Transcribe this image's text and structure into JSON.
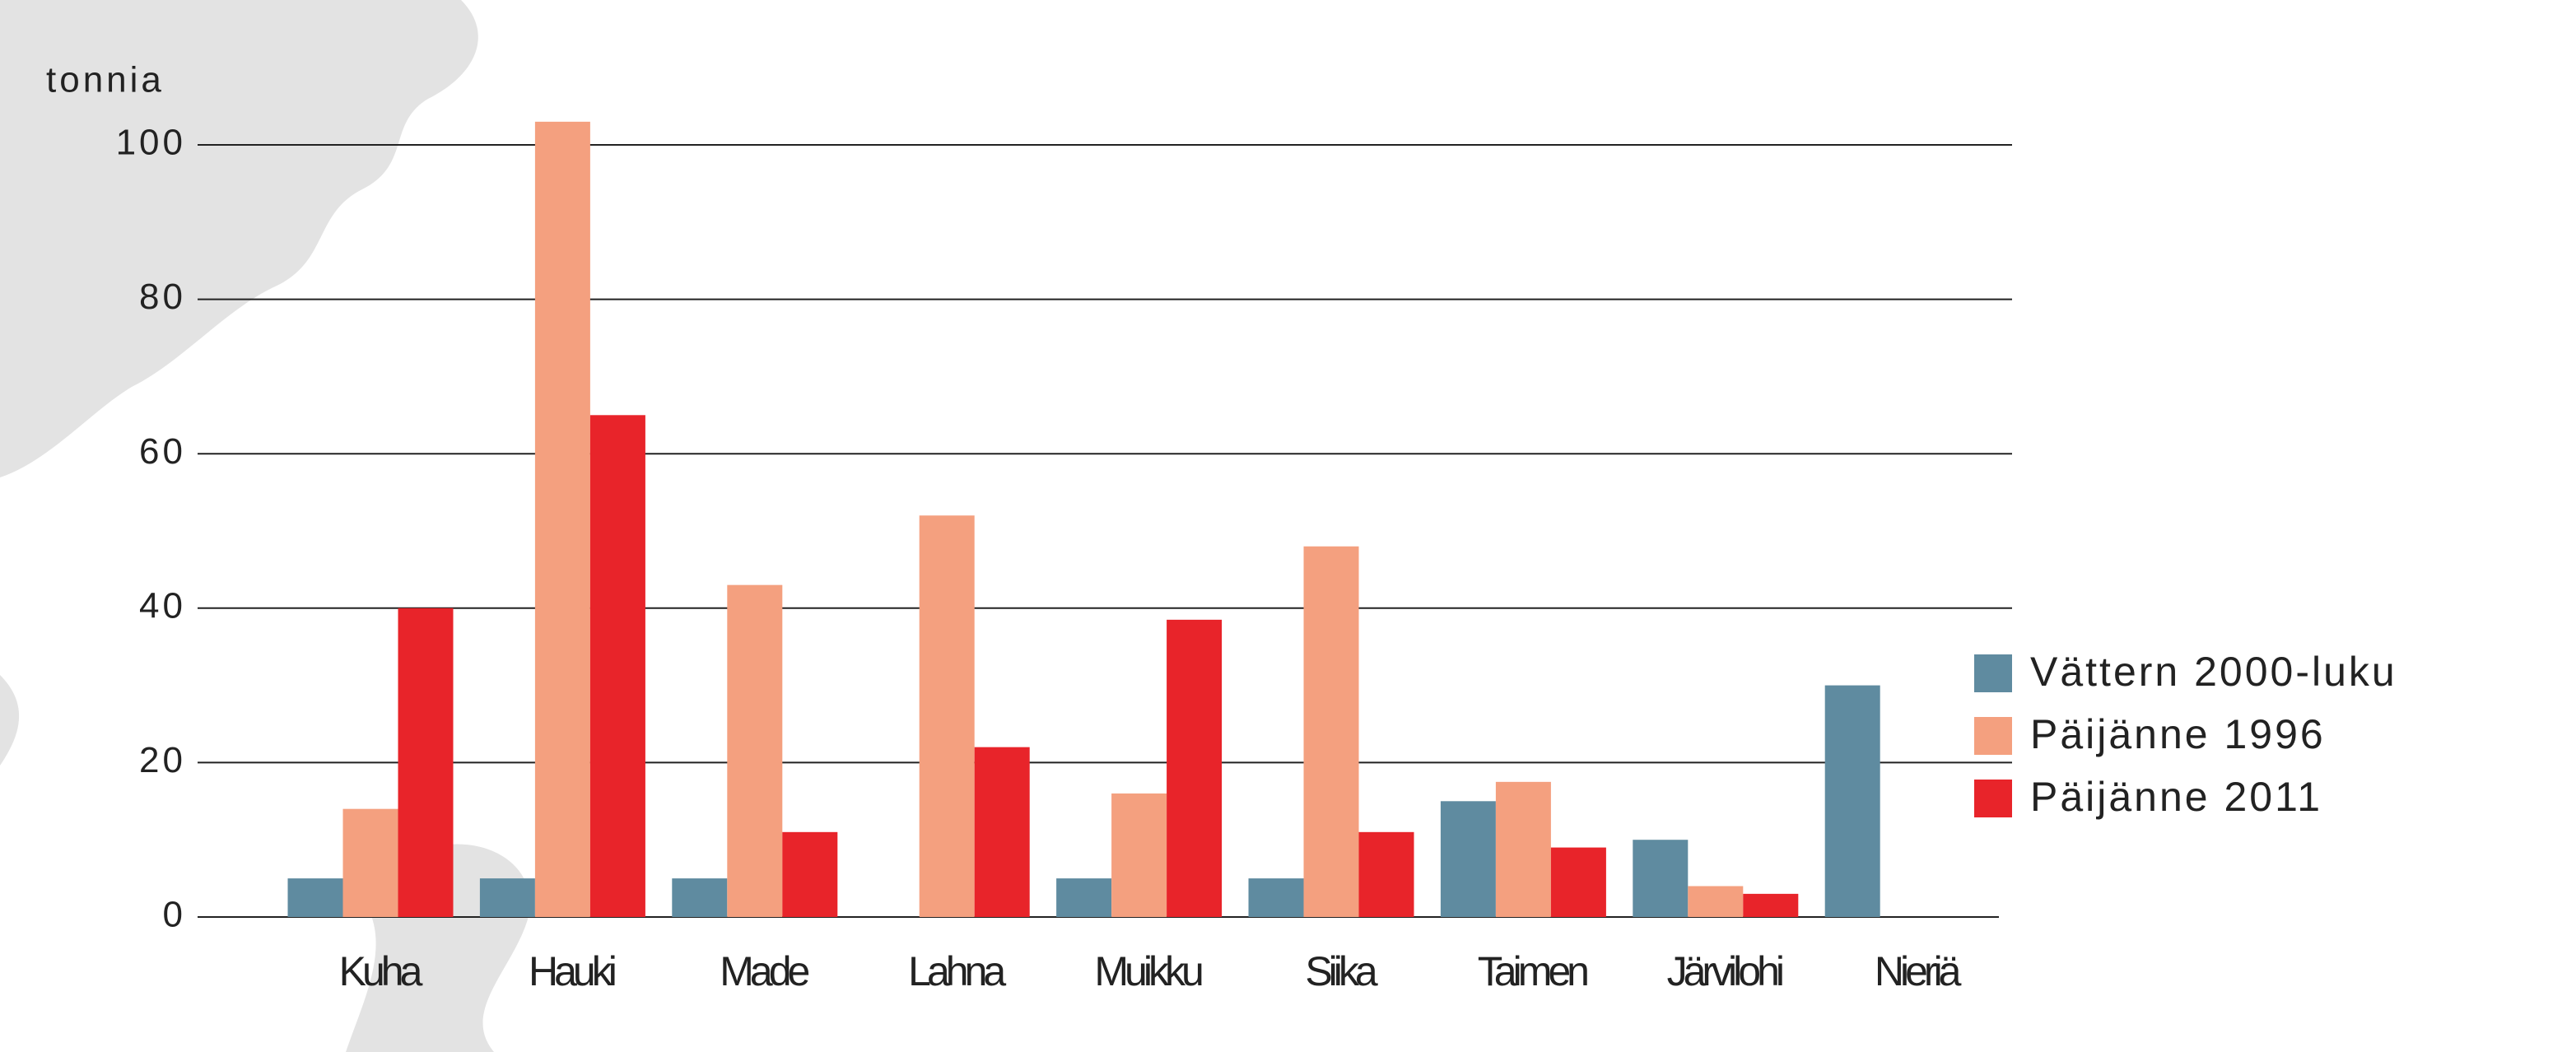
{
  "chart_data": {
    "type": "bar",
    "y_label": "tonnia",
    "categories": [
      "Kuha",
      "Hauki",
      "Made",
      "Lahna",
      "Muikku",
      "Siika",
      "Taimen",
      "Järvilohi",
      "Nieriä"
    ],
    "series": [
      {
        "name": "Vättern 2000-luku",
        "color": "#5f8ba0",
        "values": [
          5,
          5,
          5,
          null,
          5,
          5,
          15,
          10,
          30
        ]
      },
      {
        "name": "Päijänne 1996",
        "color": "#f4a07f",
        "values": [
          14,
          103,
          43,
          52,
          16,
          48,
          17.5,
          4,
          null
        ]
      },
      {
        "name": "Päijänne 2011",
        "color": "#e8242a",
        "values": [
          40,
          65,
          11,
          22,
          38.5,
          11,
          9,
          3,
          null
        ]
      }
    ],
    "ylim": [
      0,
      105
    ],
    "yticks": [
      0,
      20,
      40,
      60,
      80,
      100
    ],
    "grid": true
  }
}
